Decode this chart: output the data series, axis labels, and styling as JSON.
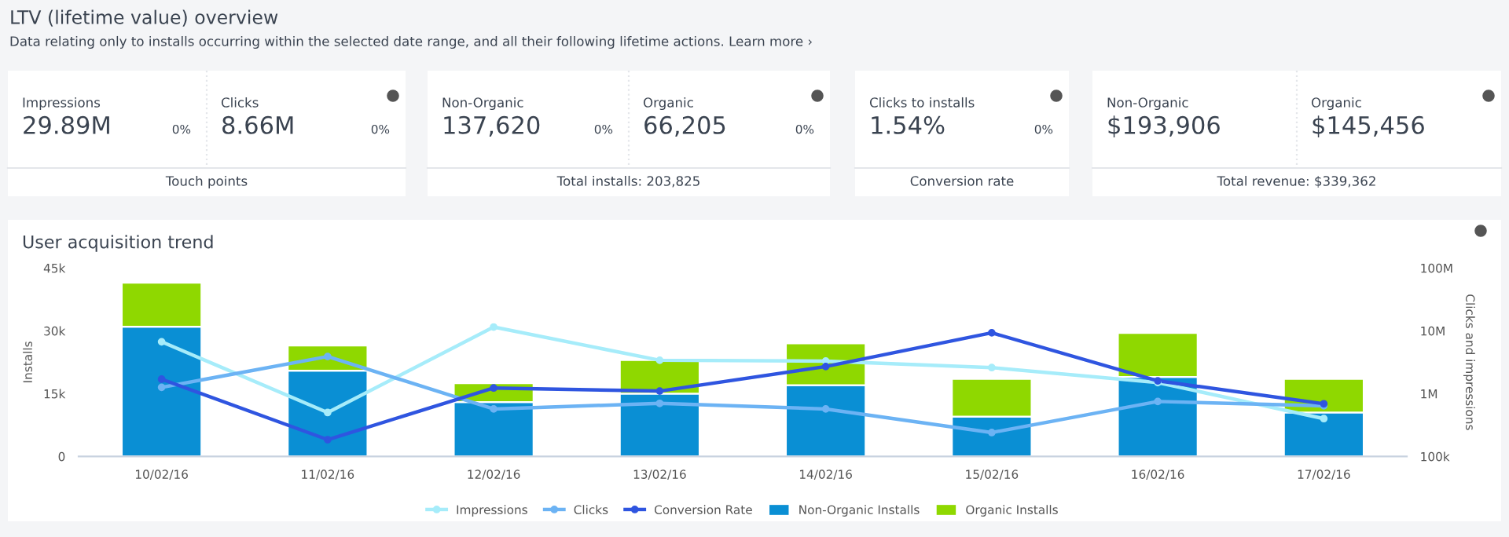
{
  "chart_data": [
    {
      "type": "other",
      "title": "LTV (lifetime value) overview",
      "subtitle": "Data relating only to installs occurring within the selected date range, and all their following lifetime actions. Learn more ›"
    },
    {
      "type": "other",
      "categories": [
        "Impressions",
        "Clicks"
      ],
      "value_labels": [
        "29.89M",
        "8.66M"
      ],
      "annotations": [
        "0%",
        "0%"
      ],
      "xlabel": "Touch points"
    },
    {
      "type": "other",
      "categories": [
        "Non-Organic",
        "Organic"
      ],
      "value_labels": [
        "137,620",
        "66,205"
      ],
      "annotations": [
        "0%",
        "0%"
      ],
      "xlabel": "Total installs: 203,825"
    },
    {
      "type": "other",
      "categories": [
        "Clicks to installs"
      ],
      "value_labels": [
        "1.54%"
      ],
      "annotations": [
        "0%"
      ],
      "xlabel": "Conversion rate"
    },
    {
      "type": "other",
      "categories": [
        "Non-Organic",
        "Organic"
      ],
      "value_labels": [
        "$193,906",
        "$145,456"
      ],
      "xlabel": "Total revenue: $339,362"
    },
    {
      "type": "bar",
      "title": "User acquisition trend",
      "ylabel": "Installs",
      "y2label": "Clicks and impressions",
      "categories": [
        "10/02/16",
        "11/02/16",
        "12/02/16",
        "13/02/16",
        "14/02/16",
        "15/02/16",
        "16/02/16",
        "17/02/16"
      ],
      "stacked": true,
      "legend": "bottom",
      "grid": false,
      "marker": "circle",
      "log": "y2",
      "ylim": [
        0,
        45000
      ],
      "yticks": [
        {
          "value": 0,
          "label": "0"
        },
        {
          "value": 15000,
          "label": "15k"
        },
        {
          "value": 30000,
          "label": "30k"
        },
        {
          "value": 45000,
          "label": "45k"
        }
      ],
      "y2lim": [
        100000,
        100000000
      ],
      "y2ticks": [
        {
          "value": 100000,
          "label": "100k"
        },
        {
          "value": 1000000,
          "label": "1M"
        },
        {
          "value": 10000000,
          "label": "10M"
        },
        {
          "value": 100000000,
          "label": "100M"
        }
      ],
      "series": [
        {
          "name": "Impressions",
          "type": "line",
          "axis": "y2",
          "color": "#a6ecfa",
          "values": [
            6700000,
            500000,
            11500000,
            3400000,
            3300000,
            2600000,
            1500000,
            400000
          ]
        },
        {
          "name": "Clicks",
          "type": "line",
          "axis": "y2",
          "color": "#6cb3f4",
          "values": [
            1260000,
            3900000,
            570000,
            700000,
            570000,
            240000,
            750000,
            640000
          ]
        },
        {
          "name": "Conversion Rate",
          "type": "line",
          "axis": "y2",
          "color": "#2f55e0",
          "values": [
            1700000,
            185000,
            1230000,
            1100000,
            2700000,
            9300000,
            1600000,
            690000
          ]
        },
        {
          "name": "Non-Organic Installs",
          "type": "bar",
          "color": "#0a8fd4",
          "values": [
            31000,
            20500,
            13000,
            15000,
            17000,
            9500,
            19000,
            10500
          ]
        },
        {
          "name": "Organic Installs",
          "type": "bar",
          "color": "#8fd800",
          "values": [
            10500,
            6000,
            4500,
            8000,
            10000,
            9000,
            10500,
            8000
          ]
        }
      ]
    }
  ]
}
